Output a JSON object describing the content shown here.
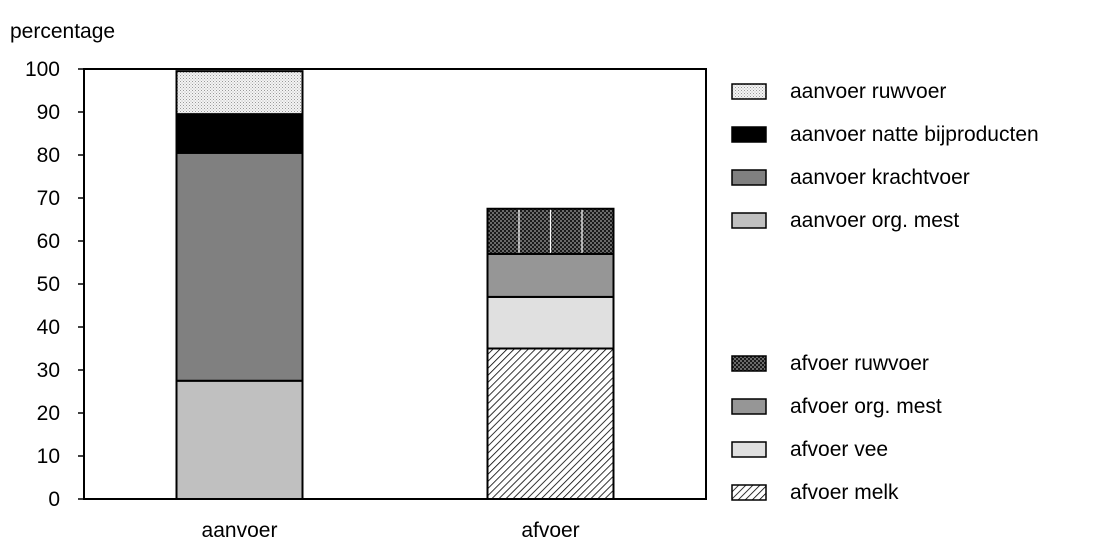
{
  "chart_data": {
    "type": "bar",
    "stacked": true,
    "ylabel": "percentage",
    "xlabel": "",
    "ylim": [
      0,
      100
    ],
    "yticks": [
      0,
      10,
      20,
      30,
      40,
      50,
      60,
      70,
      80,
      90,
      100
    ],
    "categories": [
      "aanvoer",
      "afvoer"
    ],
    "grid": false,
    "legend_position": "right",
    "series": [
      {
        "name": "aanvoer org. mest",
        "values": [
          27.5,
          0
        ],
        "color": "#c0c0c0",
        "pattern": "solid"
      },
      {
        "name": "aanvoer krachtvoer",
        "values": [
          53,
          0
        ],
        "color": "#808080",
        "pattern": "solid"
      },
      {
        "name": "aanvoer natte bijproducten",
        "values": [
          9,
          0
        ],
        "color": "#000000",
        "pattern": "solid"
      },
      {
        "name": "aanvoer ruwvoer",
        "values": [
          10,
          0
        ],
        "color": "#e8e8e8",
        "pattern": "dots"
      },
      {
        "name": "afvoer melk",
        "values": [
          0,
          35
        ],
        "color": "#ffffff",
        "pattern": "diagonal"
      },
      {
        "name": "afvoer vee",
        "values": [
          0,
          12
        ],
        "color": "#e0e0e0",
        "pattern": "solid"
      },
      {
        "name": "afvoer org. mest",
        "values": [
          0,
          10
        ],
        "color": "#969696",
        "pattern": "solid"
      },
      {
        "name": "afvoer ruwvoer",
        "values": [
          0,
          10.5
        ],
        "color": "#333333",
        "pattern": "checker"
      }
    ],
    "legend_groups": [
      [
        "aanvoer ruwvoer",
        "aanvoer natte bijproducten",
        "aanvoer krachtvoer",
        "aanvoer org. mest"
      ],
      [
        "afvoer ruwvoer",
        "afvoer org. mest",
        "afvoer vee",
        "afvoer melk"
      ]
    ]
  }
}
